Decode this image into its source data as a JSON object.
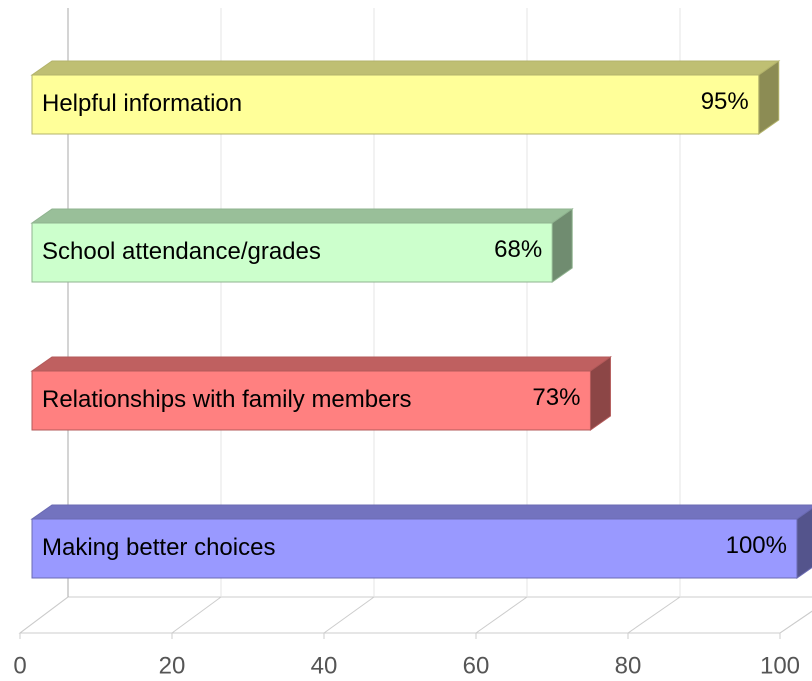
{
  "chart_data": {
    "type": "bar3d",
    "categories": [
      "Helpful information",
      "School attendance/grades",
      "Relationships with family members",
      "Making better choices"
    ],
    "values": [
      95,
      68,
      73,
      100
    ],
    "value_labels": [
      "95%",
      "68%",
      "73%",
      "100%"
    ],
    "colors": [
      "#ffff99",
      "#ccffcc",
      "#ff8080",
      "#9999ff"
    ],
    "xlim": [
      0,
      100
    ],
    "xticks": [
      0,
      20,
      40,
      60,
      80,
      100
    ],
    "grid": true
  }
}
